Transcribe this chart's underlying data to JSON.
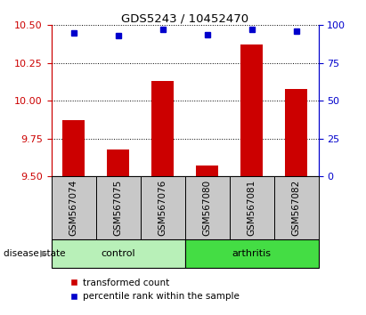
{
  "title": "GDS5243 / 10452470",
  "samples": [
    "GSM567074",
    "GSM567075",
    "GSM567076",
    "GSM567080",
    "GSM567081",
    "GSM567082"
  ],
  "bar_values": [
    9.87,
    9.68,
    10.13,
    9.57,
    10.37,
    10.08
  ],
  "percentile_values": [
    95,
    93,
    97,
    94,
    97,
    96
  ],
  "ylim_left": [
    9.5,
    10.5
  ],
  "ylim_right": [
    0,
    100
  ],
  "yticks_left": [
    9.5,
    9.75,
    10.0,
    10.25,
    10.5
  ],
  "yticks_right": [
    0,
    25,
    50,
    75,
    100
  ],
  "bar_color": "#cc0000",
  "dot_color": "#0000cc",
  "control_indices": [
    0,
    1,
    2
  ],
  "arthritis_indices": [
    3,
    4,
    5
  ],
  "control_label": "control",
  "arthritis_label": "arthritis",
  "control_bg": "#b8f0b8",
  "arthritis_bg": "#44dd44",
  "sample_bg": "#c8c8c8",
  "legend_red_label": "transformed count",
  "legend_blue_label": "percentile rank within the sample",
  "disease_state_label": "disease state",
  "title_fontsize": 9.5,
  "tick_fontsize": 8,
  "label_fontsize": 7.5,
  "legend_fontsize": 7.5
}
